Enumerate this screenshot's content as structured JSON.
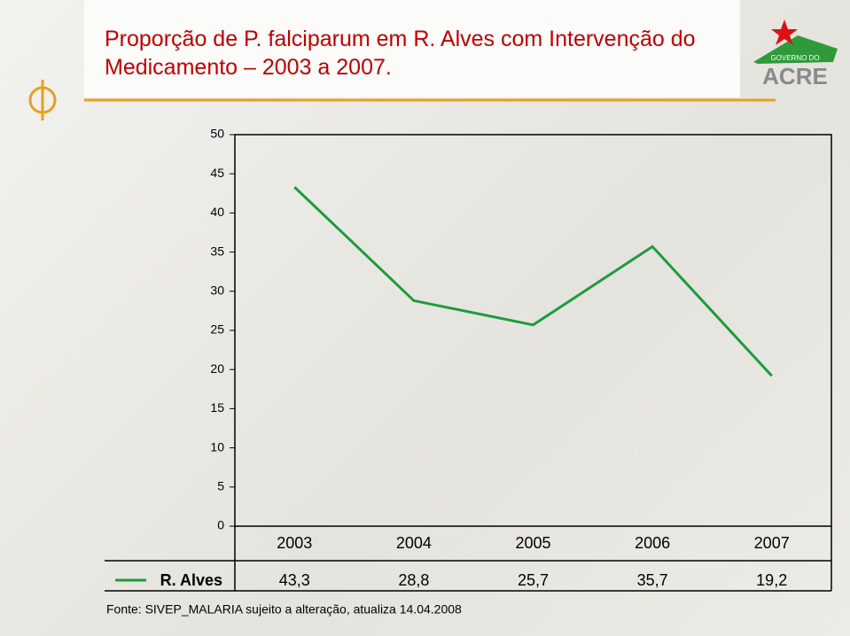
{
  "chart_data": {
    "type": "line",
    "title": "Proporção de P. falciparum em R. Alves com Intervenção do Medicamento – 2003 a 2007.",
    "categories": [
      "2003",
      "2004",
      "2005",
      "2006",
      "2007"
    ],
    "series": [
      {
        "name": "R. Alves",
        "color": "#1e9b3c",
        "values": [
          43.3,
          28.8,
          25.7,
          35.7,
          19.2
        ],
        "value_labels": [
          "43,3",
          "28,8",
          "25,7",
          "35,7",
          "19,2"
        ]
      }
    ],
    "ylim": [
      0,
      50
    ],
    "yticks": [
      0,
      5,
      10,
      15,
      20,
      25,
      30,
      35,
      40,
      45,
      50
    ],
    "grid": false,
    "source": "Fonte: SIVEP_MALARIA sujeito a alteração, atualiza 14.04.2008"
  },
  "logo": {
    "line1": "GOVERNO DO",
    "line2": "ACRE"
  }
}
